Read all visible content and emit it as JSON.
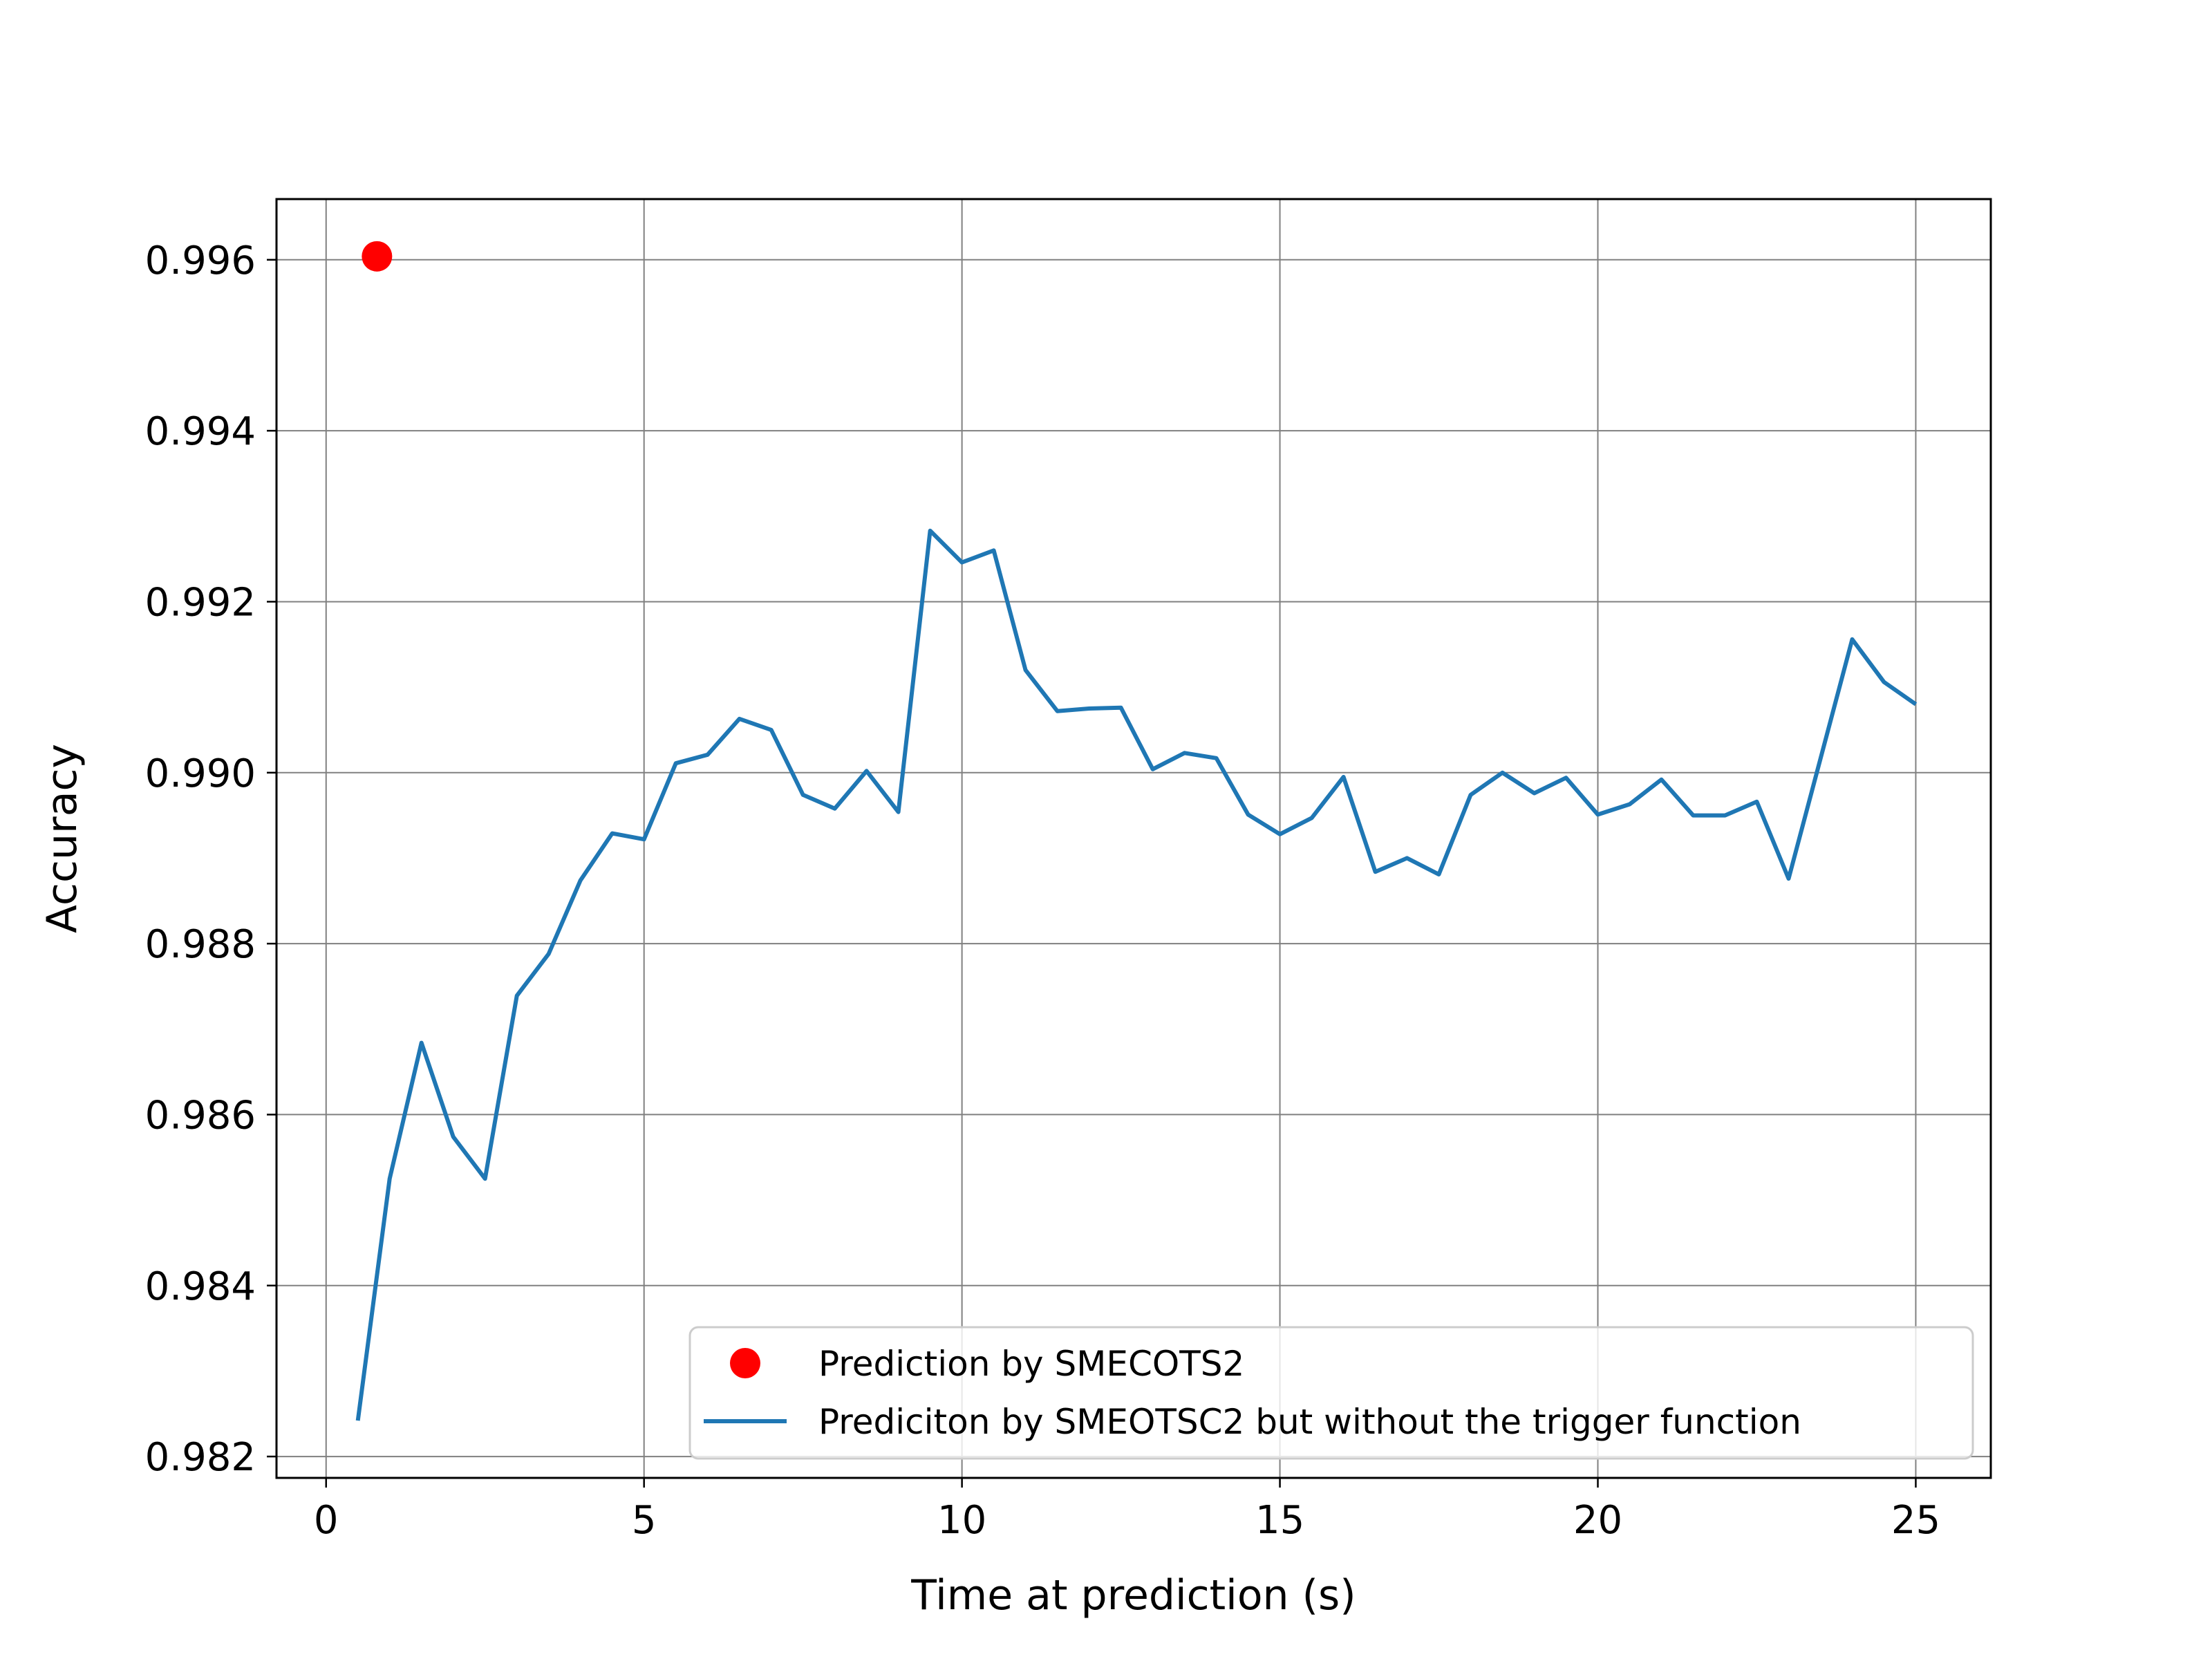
{
  "chart_data": {
    "type": "line",
    "title": "",
    "xlabel": "Time at prediction (s)",
    "ylabel": "Accuracy",
    "xlim": [
      -0.78,
      26.18
    ],
    "ylim": [
      0.98175,
      0.99671
    ],
    "x_ticks": [
      0,
      5,
      10,
      15,
      20,
      25
    ],
    "x_tick_labels": [
      "0",
      "5",
      "10",
      "15",
      "20",
      "25"
    ],
    "y_ticks": [
      0.982,
      0.984,
      0.986,
      0.988,
      0.99,
      0.992,
      0.994,
      0.996
    ],
    "y_tick_labels": [
      "0.982",
      "0.984",
      "0.986",
      "0.988",
      "0.990",
      "0.992",
      "0.994",
      "0.996"
    ],
    "grid": true,
    "legend_position": "lower-right",
    "series": [
      {
        "name": "Prediction by SMECOTS2",
        "kind": "scatter",
        "color": "#ff0000",
        "x": [
          0.8
        ],
        "y": [
          0.99604
        ]
      },
      {
        "name": "Prediciton by SMEOTSC2 but without the trigger function",
        "kind": "line",
        "color": "#1f77b4",
        "x": [
          0.5,
          1.0,
          1.5,
          2.0,
          2.5,
          3.0,
          3.5,
          4.0,
          4.5,
          5.0,
          5.5,
          6.0,
          6.5,
          7.0,
          7.5,
          8.0,
          8.5,
          9.0,
          9.5,
          10.0,
          10.5,
          11.0,
          11.5,
          12.0,
          12.5,
          13.0,
          13.5,
          14.0,
          14.5,
          15.0,
          15.5,
          16.0,
          16.5,
          17.0,
          17.5,
          18.0,
          18.5,
          19.0,
          19.5,
          20.0,
          20.5,
          21.0,
          21.5,
          22.0,
          22.5,
          23.0,
          23.5,
          24.0,
          24.5,
          25.0
        ],
        "y": [
          0.98242,
          0.98525,
          0.98684,
          0.98574,
          0.98525,
          0.98739,
          0.98788,
          0.98874,
          0.98929,
          0.98922,
          0.99011,
          0.99021,
          0.99063,
          0.9905,
          0.98974,
          0.98958,
          0.99002,
          0.98954,
          0.99283,
          0.99246,
          0.9926,
          0.9912,
          0.99072,
          0.99075,
          0.99076,
          0.99004,
          0.99023,
          0.99017,
          0.98951,
          0.98928,
          0.98947,
          0.98995,
          0.98884,
          0.989,
          0.98881,
          0.98974,
          0.99,
          0.98976,
          0.98994,
          0.98951,
          0.98963,
          0.98992,
          0.9895,
          0.9895,
          0.98966,
          0.98876,
          0.99016,
          0.99156,
          0.99106,
          0.9908
        ]
      }
    ]
  }
}
